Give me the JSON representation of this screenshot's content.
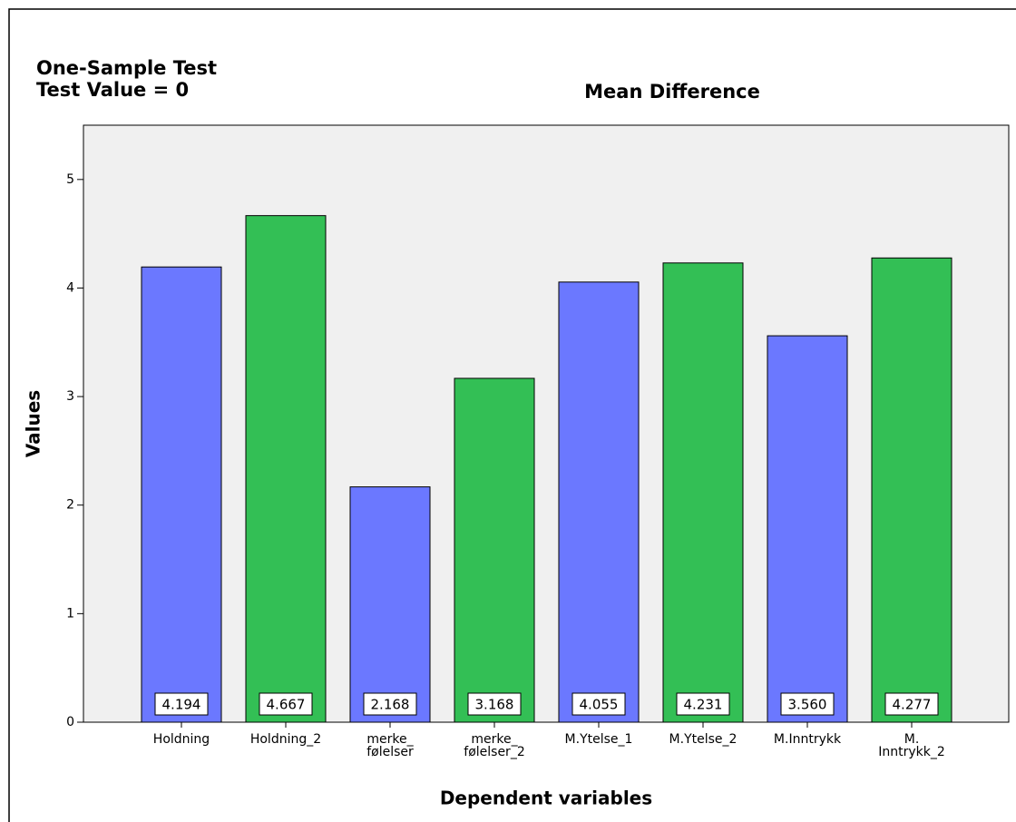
{
  "chart_data": {
    "type": "bar",
    "title": "Mean Difference",
    "header": [
      "One-Sample Test",
      "Test Value = 0"
    ],
    "xlabel": "Dependent variables",
    "ylabel": "Values",
    "categories": [
      "Holdning",
      "Holdning_2",
      "merke_\nfølelser",
      "merke_\nfølelser_2",
      "M.Ytelse_1",
      "M.Ytelse_2",
      "M.Inntrykk",
      "M.\nInntrykk_2"
    ],
    "values": [
      4.194,
      4.667,
      2.168,
      3.168,
      4.055,
      4.231,
      3.56,
      4.277
    ],
    "value_labels": [
      "4.194",
      "4.667",
      "2.168",
      "3.168",
      "4.055",
      "4.231",
      "3.560",
      "4.277"
    ],
    "colors": [
      "#6b78ff",
      "#33bf55",
      "#6b78ff",
      "#33bf55",
      "#6b78ff",
      "#33bf55",
      "#6b78ff",
      "#33bf55"
    ],
    "ylim": [
      0,
      5.5
    ],
    "yticks": [
      0,
      1,
      2,
      3,
      4,
      5
    ],
    "grid": false
  }
}
